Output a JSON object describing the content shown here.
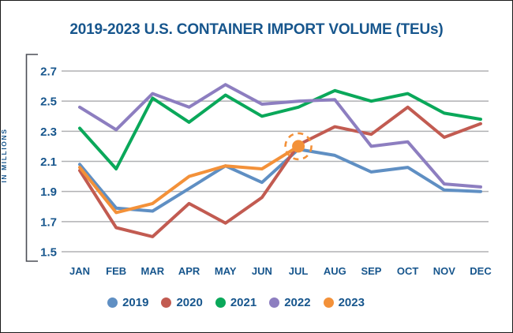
{
  "title": "2019-2023 U.S. CONTAINER IMPORT VOLUME (TEUs)",
  "colors": {
    "text_blue": "#17568d",
    "gridline": "#b0b1b3",
    "axis_bracket": "#4c4e56",
    "highlight": "#f39139"
  },
  "chart_data": {
    "type": "line",
    "title": "2019-2023 U.S. CONTAINER IMPORT VOLUME (TEUs)",
    "xlabel": "",
    "ylabel": "IN MILLIONS",
    "categories": [
      "JAN",
      "FEB",
      "MAR",
      "APR",
      "MAY",
      "JUN",
      "JUL",
      "AUG",
      "SEP",
      "OCT",
      "NOV",
      "DEC"
    ],
    "y_ticks": [
      2.7,
      2.5,
      2.3,
      2.1,
      1.9,
      1.7,
      1.5
    ],
    "ylim": [
      1.5,
      2.7
    ],
    "grid": true,
    "legend_position": "bottom",
    "series": [
      {
        "name": "2019",
        "color": "#5f8fc3",
        "values": [
          2.08,
          1.79,
          1.77,
          1.92,
          2.07,
          1.96,
          2.18,
          2.14,
          2.03,
          2.06,
          1.91,
          1.9
        ]
      },
      {
        "name": "2020",
        "color": "#c25b51",
        "values": [
          2.04,
          1.66,
          1.6,
          1.82,
          1.69,
          1.86,
          2.21,
          2.33,
          2.28,
          2.46,
          2.26,
          2.35
        ]
      },
      {
        "name": "2021",
        "color": "#0aa85a",
        "values": [
          2.32,
          2.05,
          2.52,
          2.36,
          2.54,
          2.4,
          2.46,
          2.57,
          2.5,
          2.55,
          2.42,
          2.38
        ]
      },
      {
        "name": "2022",
        "color": "#8d7ec0",
        "values": [
          2.46,
          2.31,
          2.55,
          2.46,
          2.61,
          2.48,
          2.5,
          2.51,
          2.2,
          2.23,
          1.95,
          1.93
        ]
      },
      {
        "name": "2023",
        "color": "#f39139",
        "values": [
          2.06,
          1.76,
          1.82,
          2.0,
          2.07,
          2.05,
          2.2
        ]
      }
    ],
    "annotations": [
      {
        "type": "highlight-circle",
        "series": "2023",
        "category": "JUL",
        "value": 2.2,
        "style": "dashed-ring"
      }
    ]
  }
}
